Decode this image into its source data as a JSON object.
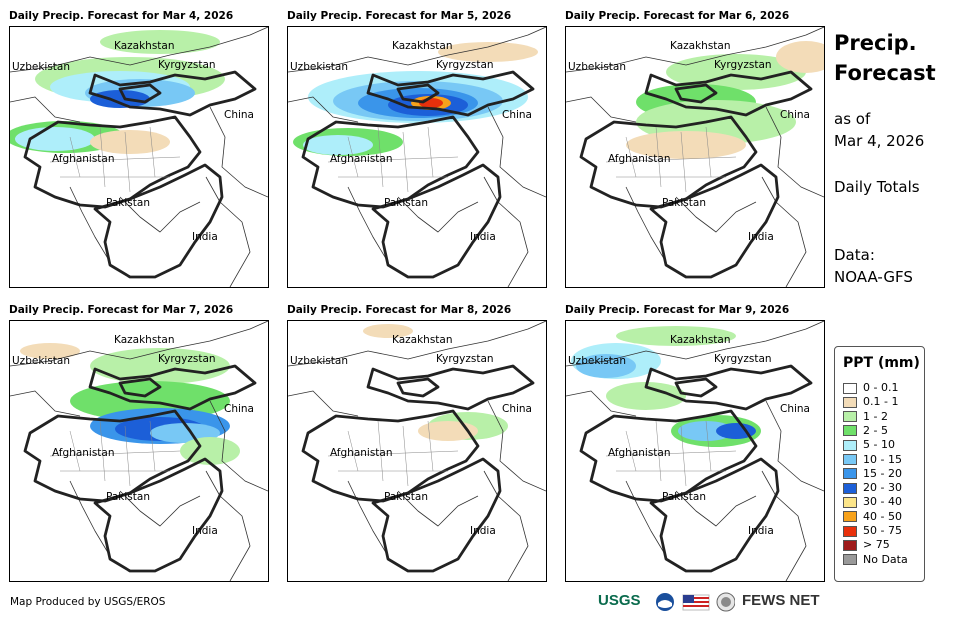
{
  "panels": [
    {
      "title": "Daily Precip. Forecast for Mar 4, 2026"
    },
    {
      "title": "Daily Precip. Forecast for Mar 5, 2026"
    },
    {
      "title": "Daily Precip. Forecast for Mar 6, 2026"
    },
    {
      "title": "Daily Precip. Forecast for Mar 7, 2026"
    },
    {
      "title": "Daily Precip. Forecast for Mar 8, 2026"
    },
    {
      "title": "Daily Precip. Forecast for Mar 9, 2026"
    }
  ],
  "countries": {
    "kazakhstan": "Kazakhstan",
    "uzbekistan": "Uzbekistan",
    "kyrgyzstan": "Kyrgyzstan",
    "china": "China",
    "afghanistan": "Afghanistan",
    "pakistan": "Pakistan",
    "india": "India"
  },
  "side": {
    "title_line1": "Precip.",
    "title_line2": "Forecast",
    "as_of_label": "as of",
    "as_of_date": "Mar 4, 2026",
    "totals": "Daily Totals",
    "data_label": "Data:",
    "data_source": "NOAA-GFS"
  },
  "legend": {
    "title": "PPT (mm)",
    "items": [
      {
        "label": "0 - 0.1",
        "color": "#ffffff"
      },
      {
        "label": "0.1 - 1",
        "color": "#f3dcb8"
      },
      {
        "label": "1 - 2",
        "color": "#b8f0a8"
      },
      {
        "label": "2 - 5",
        "color": "#6fe06a"
      },
      {
        "label": "5 - 10",
        "color": "#aeeefa"
      },
      {
        "label": "10 - 15",
        "color": "#78c8f5"
      },
      {
        "label": "15 - 20",
        "color": "#3a95ea"
      },
      {
        "label": "20 - 30",
        "color": "#1c5fd8"
      },
      {
        "label": "30 - 40",
        "color": "#fde68a"
      },
      {
        "label": "40 - 50",
        "color": "#f7a21b"
      },
      {
        "label": "50 - 75",
        "color": "#e8300c"
      },
      {
        "label": "> 75",
        "color": "#9e1a1a"
      },
      {
        "label": "No Data",
        "color": "#999999"
      }
    ]
  },
  "footer": {
    "credit": "Map Produced by USGS/EROS",
    "usgs_logo": "USGS",
    "fews_logo": "FEWS NET"
  }
}
